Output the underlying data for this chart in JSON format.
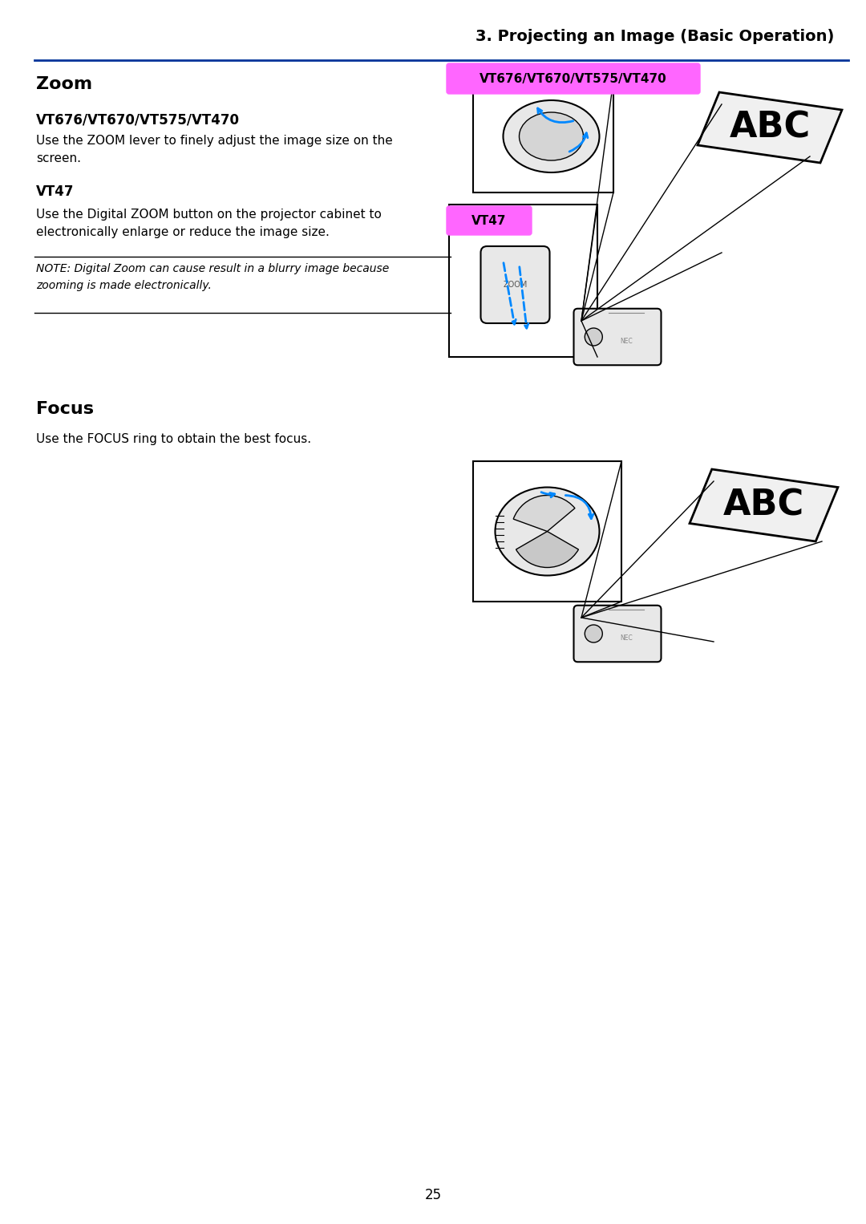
{
  "page_title": "3. Projecting an Image (Basic Operation)",
  "section1_title": "Zoom",
  "section1_subtitle1": "VT676/VT670/VT575/VT470",
  "section1_text1": "Use the ZOOM lever to finely adjust the image size on the\nscreen.",
  "section1_subtitle2": "VT47",
  "section1_text2": "Use the Digital ZOOM button on the projector cabinet to\nelectronically enlarge or reduce the image size.",
  "note_text": "NOTE: Digital Zoom can cause result in a blurry image because\nzooming is made electronically.",
  "section2_title": "Focus",
  "section2_text": "Use the FOCUS ring to obtain the best focus.",
  "page_number": "25",
  "badge1_text": "VT676/VT670/VT575/VT470",
  "badge1_color": "#FF66FF",
  "badge2_text": "VT47",
  "badge2_color": "#FF66FF",
  "title_color": "#003399",
  "header_line_color": "#003399",
  "bg_color": "#FFFFFF",
  "text_color": "#000000",
  "note_line_color": "#000000"
}
